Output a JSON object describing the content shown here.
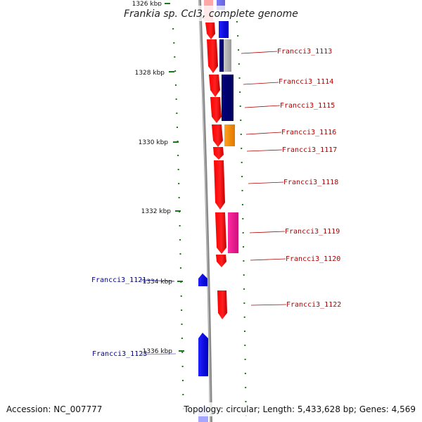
{
  "title": "Frankia sp. CcI3, complete genome",
  "footer": {
    "accession": "Accession: NC_007777",
    "summary": "Topology: circular; Length: 5,433,628 bp; Genes: 4,569"
  },
  "ticks": [
    {
      "label": "1326 kbp",
      "kbp": 1326
    },
    {
      "label": "1328 kbp",
      "kbp": 1328
    },
    {
      "label": "1330 kbp",
      "kbp": 1330
    },
    {
      "label": "1332 kbp",
      "kbp": 1332
    },
    {
      "label": "1334 kbp",
      "kbp": 1334
    },
    {
      "label": "1336 kbp",
      "kbp": 1336
    }
  ],
  "genes_right": [
    {
      "name": "Francci3_1113"
    },
    {
      "name": "Francci3_1114"
    },
    {
      "name": "Francci3_1115"
    },
    {
      "name": "Francci3_1116"
    },
    {
      "name": "Francci3_1117"
    },
    {
      "name": "Francci3_1118"
    },
    {
      "name": "Francci3_1119"
    },
    {
      "name": "Francci3_1120"
    },
    {
      "name": "Francci3_1122"
    }
  ],
  "genes_left": [
    {
      "name": "Francci3_1121"
    },
    {
      "name": "Francci3_1123"
    }
  ],
  "colors": {
    "forward_gene": "#ff0000",
    "reverse_gene": "#0000ff",
    "navy_feature": "#000080",
    "grey_feature": "#b0b0b0",
    "orange_feature": "#ff8c00",
    "magenta_feature": "#e8148c",
    "tick": "#1a7a1a",
    "backbone": "#808080",
    "right_label": "#b00000",
    "left_label": "#00008b"
  }
}
